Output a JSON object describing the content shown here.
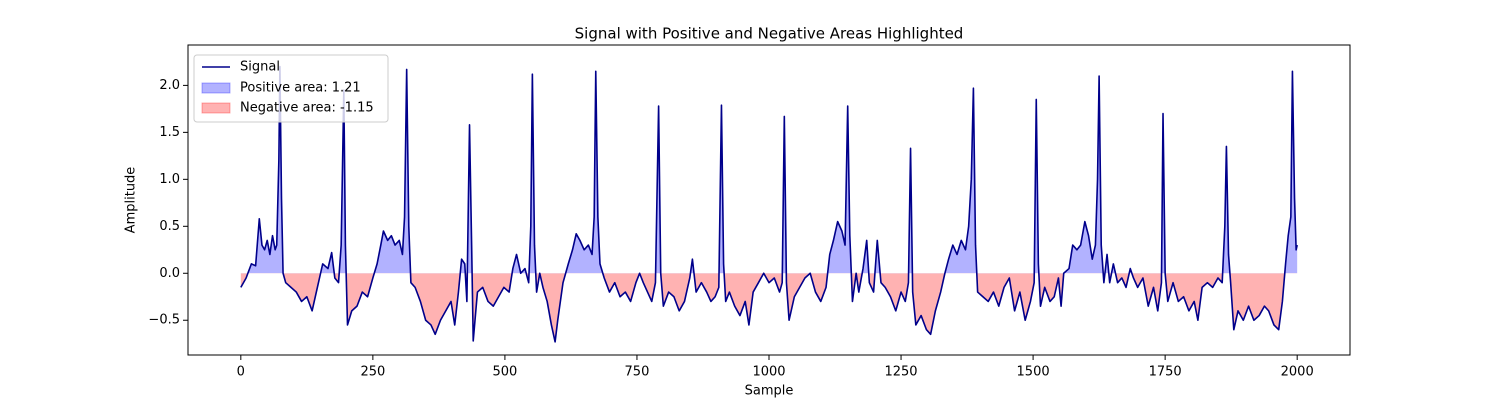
{
  "chart_data": {
    "type": "line",
    "title": "Signal with Positive and Negative Areas Highlighted",
    "xlabel": "Sample",
    "ylabel": "Amplitude",
    "x": [
      0,
      10,
      20,
      28,
      35,
      40,
      45,
      50,
      55,
      60,
      65,
      68,
      72,
      74,
      77,
      80,
      85,
      95,
      105,
      115,
      125,
      135,
      145,
      155,
      165,
      172,
      178,
      185,
      190,
      195,
      198,
      202,
      210,
      220,
      230,
      240,
      250,
      258,
      265,
      270,
      278,
      285,
      292,
      300,
      306,
      310,
      314,
      318,
      322,
      330,
      340,
      350,
      360,
      368,
      378,
      388,
      398,
      405,
      412,
      418,
      424,
      428,
      433,
      437,
      440,
      448,
      458,
      468,
      478,
      488,
      498,
      508,
      515,
      522,
      530,
      538,
      545,
      549,
      552,
      556,
      560,
      566,
      572,
      580,
      588,
      595,
      600,
      610,
      620,
      628,
      635,
      642,
      650,
      658,
      665,
      669,
      672,
      676,
      680,
      688,
      698,
      708,
      718,
      728,
      738,
      748,
      755,
      762,
      770,
      778,
      785,
      791,
      795,
      800,
      810,
      820,
      830,
      840,
      850,
      855,
      862,
      872,
      882,
      890,
      898,
      905,
      910,
      914,
      918,
      925,
      935,
      945,
      955,
      962,
      970,
      980,
      990,
      1000,
      1010,
      1020,
      1025,
      1029,
      1033,
      1038,
      1048,
      1058,
      1068,
      1078,
      1088,
      1098,
      1108,
      1115,
      1122,
      1130,
      1138,
      1144,
      1149,
      1153,
      1158,
      1165,
      1170,
      1178,
      1185,
      1190,
      1198,
      1205,
      1212,
      1220,
      1230,
      1240,
      1250,
      1258,
      1264,
      1268,
      1272,
      1278,
      1288,
      1298,
      1306,
      1315,
      1325,
      1333,
      1340,
      1348,
      1356,
      1364,
      1372,
      1378,
      1383,
      1387,
      1391,
      1395,
      1405,
      1415,
      1425,
      1435,
      1445,
      1455,
      1465,
      1475,
      1485,
      1495,
      1502,
      1506,
      1510,
      1514,
      1522,
      1532,
      1540,
      1548,
      1553,
      1558,
      1568,
      1575,
      1583,
      1590,
      1598,
      1605,
      1612,
      1618,
      1622,
      1625,
      1629,
      1634,
      1640,
      1645,
      1652,
      1660,
      1668,
      1676,
      1684,
      1690,
      1698,
      1708,
      1718,
      1728,
      1736,
      1743,
      1746,
      1750,
      1755,
      1765,
      1775,
      1785,
      1795,
      1805,
      1812,
      1820,
      1830,
      1840,
      1850,
      1858,
      1863,
      1866,
      1870,
      1874,
      1880,
      1888,
      1898,
      1908,
      1918,
      1928,
      1938,
      1946,
      1956,
      1965,
      1972,
      1978,
      1983,
      1988,
      1991,
      1995,
      1998,
      2000
    ],
    "series": [
      {
        "name": "Signal",
        "color": "#00008b",
        "values": [
          -0.15,
          -0.05,
          0.1,
          0.08,
          0.58,
          0.3,
          0.25,
          0.35,
          0.2,
          0.4,
          0.25,
          0.3,
          1.2,
          2.2,
          0.8,
          0.0,
          -0.1,
          -0.15,
          -0.2,
          -0.3,
          -0.25,
          -0.4,
          -0.15,
          0.1,
          0.05,
          0.22,
          -0.05,
          -0.1,
          0.3,
          1.95,
          0.3,
          -0.55,
          -0.4,
          -0.35,
          -0.2,
          -0.25,
          -0.05,
          0.1,
          0.3,
          0.45,
          0.35,
          0.4,
          0.3,
          0.35,
          0.2,
          0.6,
          2.17,
          0.5,
          -0.1,
          -0.15,
          -0.3,
          -0.5,
          -0.55,
          -0.65,
          -0.5,
          -0.4,
          -0.3,
          -0.55,
          -0.2,
          0.15,
          0.1,
          -0.3,
          1.58,
          0.3,
          -0.72,
          -0.2,
          -0.15,
          -0.3,
          -0.35,
          -0.25,
          -0.15,
          -0.2,
          0.05,
          0.2,
          0.0,
          0.05,
          -0.1,
          0.5,
          2.12,
          0.3,
          -0.2,
          0.0,
          -0.15,
          -0.3,
          -0.55,
          -0.73,
          -0.5,
          -0.1,
          0.1,
          0.25,
          0.42,
          0.35,
          0.25,
          0.3,
          0.2,
          0.6,
          2.15,
          0.6,
          0.1,
          -0.05,
          -0.2,
          -0.1,
          -0.25,
          -0.2,
          -0.3,
          -0.1,
          0.0,
          -0.1,
          -0.2,
          -0.3,
          -0.1,
          1.78,
          0.0,
          -0.35,
          -0.2,
          -0.25,
          -0.4,
          -0.3,
          -0.05,
          0.15,
          -0.2,
          -0.1,
          -0.2,
          -0.3,
          -0.25,
          -0.15,
          1.79,
          0.1,
          -0.3,
          -0.2,
          -0.35,
          -0.45,
          -0.3,
          -0.55,
          -0.2,
          -0.1,
          0.0,
          -0.1,
          -0.05,
          -0.2,
          -0.1,
          1.67,
          -0.1,
          -0.5,
          -0.25,
          -0.15,
          -0.05,
          0.0,
          -0.2,
          -0.3,
          -0.15,
          0.2,
          0.35,
          0.55,
          0.45,
          0.3,
          1.78,
          0.4,
          -0.3,
          0.0,
          -0.2,
          0.05,
          0.35,
          -0.1,
          -0.2,
          0.35,
          -0.1,
          -0.15,
          -0.25,
          -0.4,
          -0.2,
          -0.3,
          -0.1,
          1.33,
          -0.2,
          -0.55,
          -0.45,
          -0.6,
          -0.65,
          -0.4,
          -0.2,
          0.0,
          0.15,
          0.3,
          0.2,
          0.35,
          0.25,
          0.5,
          1.0,
          1.97,
          0.3,
          -0.2,
          -0.25,
          -0.3,
          -0.2,
          -0.35,
          -0.15,
          -0.05,
          -0.4,
          -0.2,
          -0.5,
          -0.3,
          -0.1,
          1.85,
          0.1,
          -0.35,
          -0.15,
          -0.3,
          -0.25,
          -0.05,
          -0.35,
          0.0,
          0.05,
          0.3,
          0.25,
          0.3,
          0.55,
          0.4,
          0.15,
          0.3,
          1.0,
          2.1,
          0.3,
          -0.1,
          0.2,
          -0.1,
          0.1,
          -0.1,
          -0.05,
          -0.15,
          0.05,
          -0.05,
          -0.15,
          -0.05,
          -0.35,
          -0.15,
          -0.4,
          -0.1,
          1.7,
          0.0,
          -0.3,
          -0.1,
          -0.3,
          -0.25,
          -0.4,
          -0.3,
          -0.5,
          -0.15,
          -0.1,
          -0.15,
          -0.05,
          -0.1,
          0.5,
          1.35,
          0.2,
          -0.1,
          -0.6,
          -0.4,
          -0.5,
          -0.35,
          -0.5,
          -0.45,
          -0.35,
          -0.4,
          -0.55,
          -0.6,
          -0.3,
          0.1,
          0.4,
          0.6,
          2.15,
          0.8,
          0.25,
          0.3
        ]
      }
    ],
    "positive_area": {
      "name": "Positive area: 1.21",
      "color": "#0000ff"
    },
    "negative_area": {
      "name": "Negative area: -1.15",
      "color": "#ff0000"
    },
    "xlim": [
      -100,
      2100
    ],
    "ylim": [
      -0.87,
      2.43
    ],
    "xticks": [
      0,
      250,
      500,
      750,
      1000,
      1250,
      1500,
      1750,
      2000
    ],
    "yticks": [
      {
        "value": -0.5,
        "label": "−0.5"
      },
      {
        "value": 0,
        "label": "0.0"
      },
      0.5,
      {
        "value": 1,
        "label": "1.0"
      },
      1.5,
      {
        "value": 2,
        "label": "2.0"
      }
    ],
    "legend": "upper left"
  }
}
